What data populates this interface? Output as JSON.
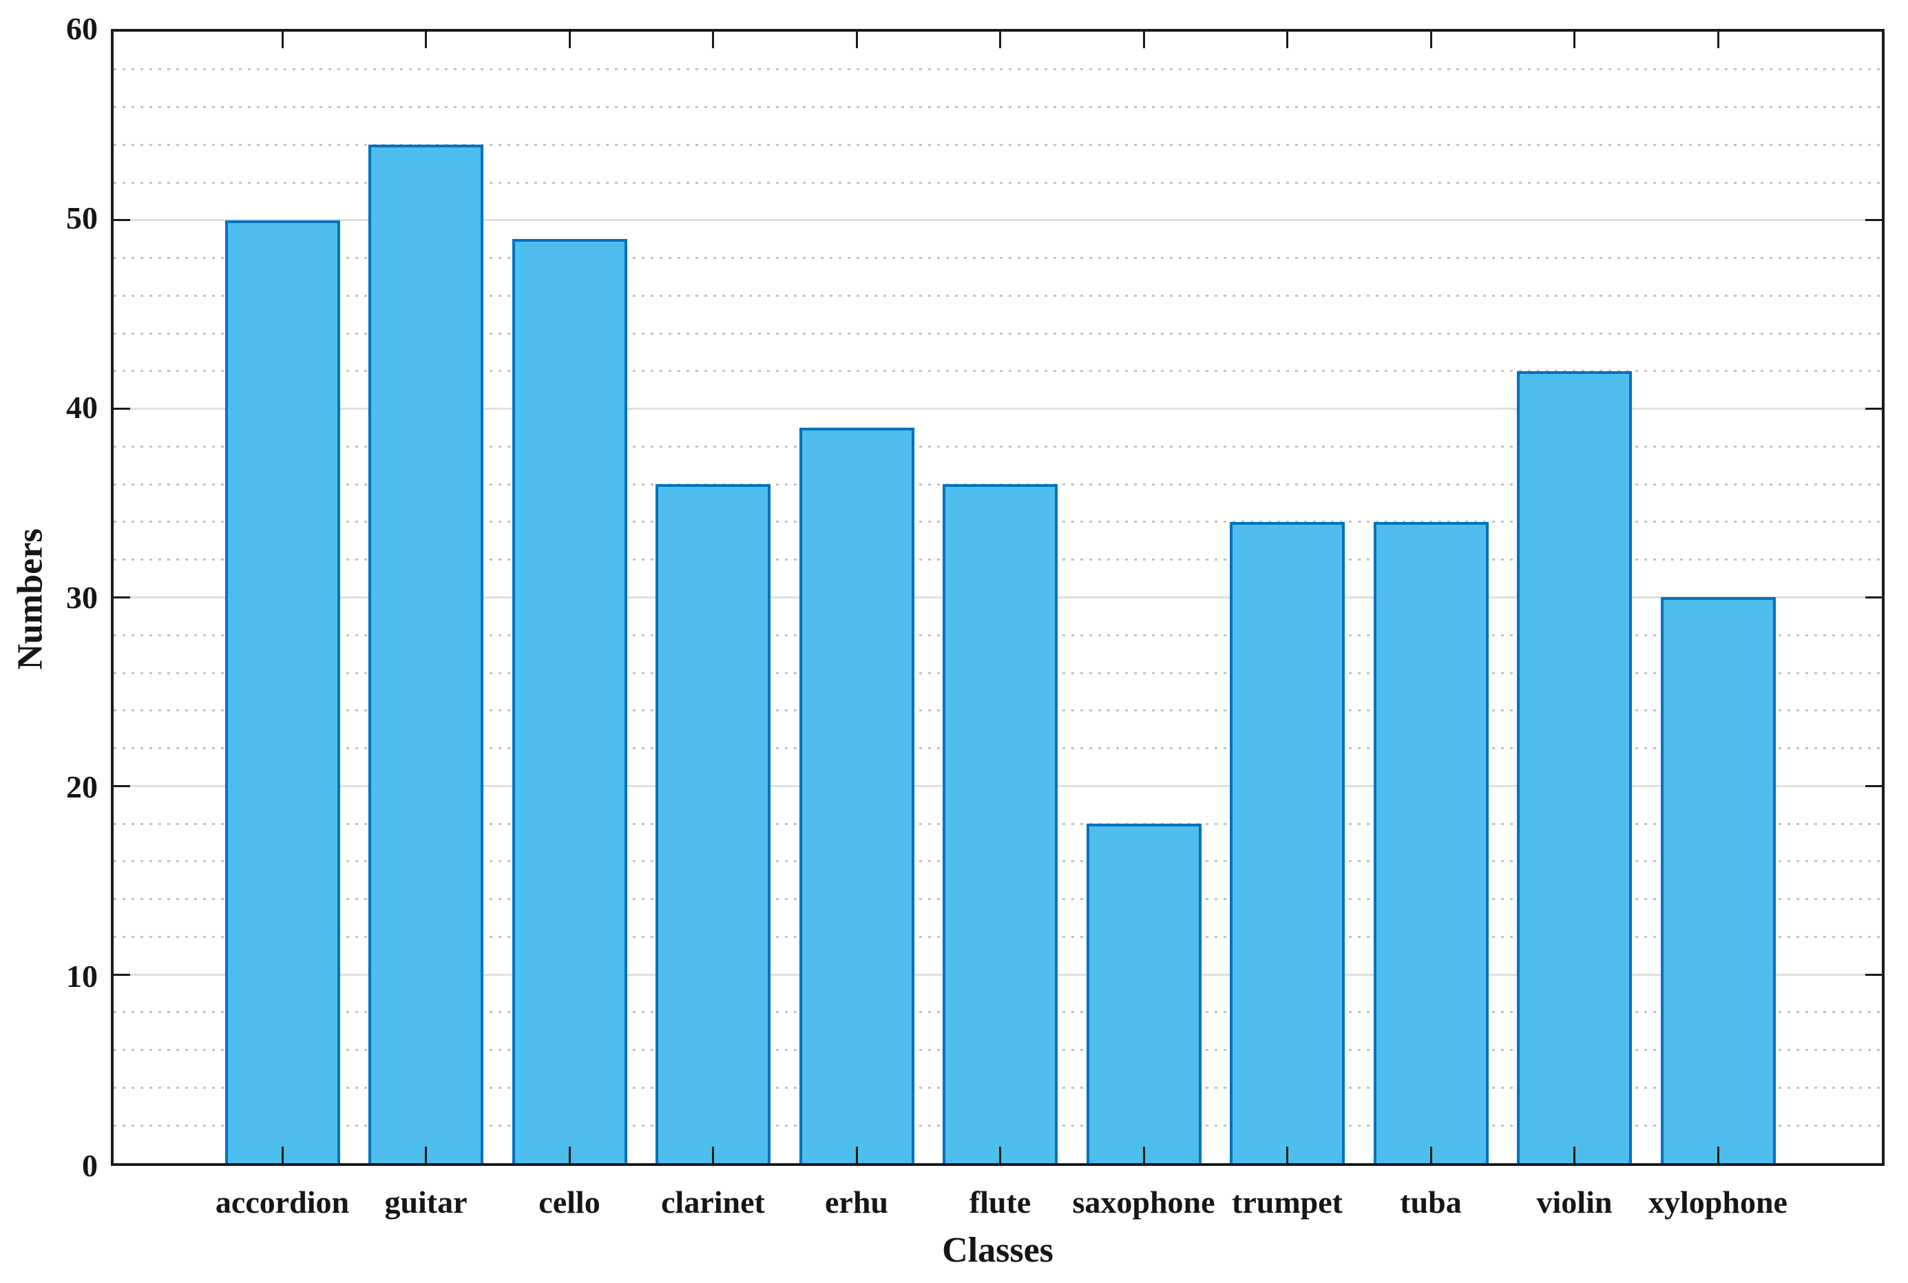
{
  "chart_data": {
    "type": "bar",
    "categories": [
      "accordion",
      "guitar",
      "cello",
      "clarinet",
      "erhu",
      "flute",
      "saxophone",
      "trumpet",
      "tuba",
      "violin",
      "xylophone"
    ],
    "values": [
      50,
      54,
      49,
      36,
      39,
      36,
      18,
      34,
      34,
      42,
      30
    ],
    "title": "",
    "xlabel": "Classes",
    "ylabel": "Numbers",
    "ylim": [
      0,
      60
    ],
    "yticks": [
      0,
      10,
      20,
      30,
      40,
      50,
      60
    ],
    "y_minor_step": 2,
    "grid": {
      "y_major": "solid",
      "y_minor": "dotted",
      "x": "none"
    },
    "legend_position": "none",
    "bar_width_fraction": 0.8,
    "colors": {
      "bar_fill": "#4DBEEE",
      "bar_edge": "#0072BD",
      "axis": "#1B1B1B",
      "text": "#161616",
      "grid_major": "#E0E0E0",
      "grid_minor": "#C3C3C3",
      "background": "#FFFFFF"
    }
  }
}
